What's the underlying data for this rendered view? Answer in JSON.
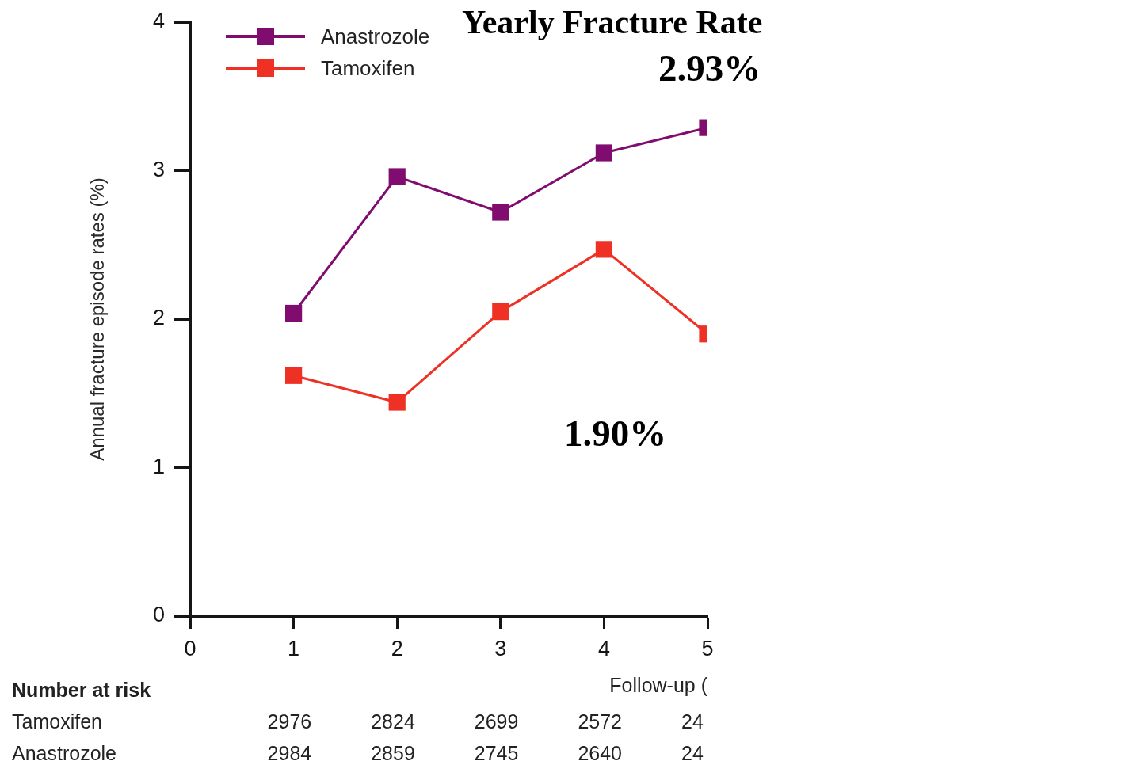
{
  "chart_data": {
    "type": "line",
    "title": "Yearly Fracture Rate",
    "xlabel": "Follow-up (",
    "ylabel": "Annual fracture episode rates (%)",
    "x": [
      1,
      2,
      3,
      4,
      5
    ],
    "series": [
      {
        "name": "Anastrozole",
        "color": "#800c6f",
        "values": [
          2.04,
          2.96,
          2.72,
          3.12,
          3.29
        ]
      },
      {
        "name": "Tamoxifen",
        "color": "#ee3124",
        "values": [
          1.62,
          1.44,
          2.05,
          2.47,
          1.9
        ]
      }
    ],
    "xlim": [
      0,
      5
    ],
    "xticks": [
      0,
      1,
      2,
      3,
      4,
      5
    ],
    "ylim": [
      0,
      4
    ],
    "yticks": [
      0,
      1,
      2,
      3,
      4
    ],
    "grid": false,
    "legend": "top left",
    "marker": "square",
    "line_style": "solid",
    "annotations": [
      "2.93%",
      "1.90%",
      "Number at risk",
      "Tamoxifen",
      "2976",
      "2824",
      "2699",
      "2572",
      "24",
      "Anastrozole",
      "2984",
      "2859",
      "2745",
      "2640",
      "24"
    ]
  }
}
